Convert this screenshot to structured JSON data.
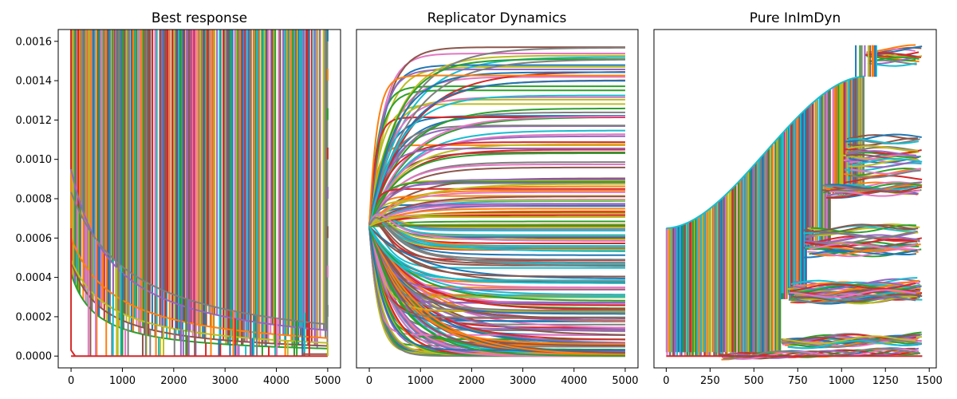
{
  "palette": [
    "#1f77b4",
    "#ff7f0e",
    "#2ca02c",
    "#d62728",
    "#9467bd",
    "#8c564b",
    "#e377c2",
    "#7f7f7f",
    "#bcbd22",
    "#17becf"
  ],
  "chart_data": [
    {
      "type": "line",
      "title": "Best response",
      "xlabel": "",
      "ylabel": "",
      "xlim": [
        -250,
        5250
      ],
      "ylim": [
        -6e-05,
        0.00166
      ],
      "xticks": [
        0,
        1000,
        2000,
        3000,
        4000,
        5000
      ],
      "xtick_labels": [
        "0",
        "1000",
        "2000",
        "3000",
        "4000",
        "5000"
      ],
      "yticks": [
        0.0,
        0.0002,
        0.0004,
        0.0006,
        0.0008,
        0.001,
        0.0012,
        0.0014,
        0.0016
      ],
      "ytick_labels": [
        "0.0000",
        "0.0002",
        "0.0004",
        "0.0006",
        "0.0008",
        "0.0010",
        "0.0012",
        "0.0014",
        "0.0016"
      ],
      "grid": false,
      "legend": "none",
      "series_count": 1500,
      "envelope": [
        {
          "k": 1,
          "values": [
            [
              800,
              0.00166
            ],
            [
              1500,
              0.00134
            ],
            [
              2500,
              0.00094
            ],
            [
              3500,
              0.0007
            ],
            [
              5000,
              0.0005
            ]
          ]
        },
        {
          "k": 2,
          "values": [
            [
              1000,
              0.00166
            ],
            [
              1500,
              0.00147
            ],
            [
              2500,
              0.00111
            ],
            [
              3500,
              0.00087
            ],
            [
              5000,
              0.00066
            ]
          ]
        },
        {
          "k": 3,
          "values": [
            [
              3000,
              0.00166
            ],
            [
              4000,
              0.0015
            ],
            [
              5000,
              0.0014
            ]
          ]
        },
        {
          "k": 4,
          "values": [
            [
              4000,
              0.00166
            ],
            [
              5000,
              0.0016
            ]
          ]
        }
      ],
      "levels": [
        0.0016,
        0.0014,
        0.0012,
        0.001,
        0.0008,
        0.0006,
        0.0004,
        0.0002,
        0.0
      ],
      "start_value": 0.00065
    },
    {
      "type": "line",
      "title": "Replicator Dynamics",
      "xlabel": "",
      "ylabel": "",
      "xlim": [
        -250,
        5250
      ],
      "ylim": [
        -6e-05,
        0.00166
      ],
      "xticks": [
        0,
        1000,
        2000,
        3000,
        4000,
        5000
      ],
      "xtick_labels": [
        "0",
        "1000",
        "2000",
        "3000",
        "4000",
        "5000"
      ],
      "yticks": [],
      "grid": false,
      "legend": "none",
      "series_count": 250,
      "start_value": 0.00066,
      "final_value_range": [
        0.0,
        0.00158
      ]
    },
    {
      "type": "line",
      "title": "Pure InImDyn",
      "xlabel": "",
      "ylabel": "",
      "xlim": [
        -70,
        1540
      ],
      "ylim": [
        -6e-05,
        0.00166
      ],
      "xticks": [
        0,
        250,
        500,
        750,
        1000,
        1250,
        1500
      ],
      "xtick_labels": [
        "0",
        "250",
        "500",
        "750",
        "1000",
        "1250",
        "1500"
      ],
      "yticks": [],
      "grid": false,
      "legend": "none",
      "series_count": 1500,
      "rising_envelope": [
        [
          0,
          0.00065
        ],
        [
          250,
          0.00076
        ],
        [
          500,
          0.00095
        ],
        [
          750,
          0.0012
        ],
        [
          1000,
          0.00137
        ],
        [
          1130,
          0.00142
        ]
      ],
      "cluster_levels": [
        0.00152,
        0.001,
        0.00085,
        0.00058,
        0.00032,
        7e-05,
        2e-05
      ]
    }
  ]
}
